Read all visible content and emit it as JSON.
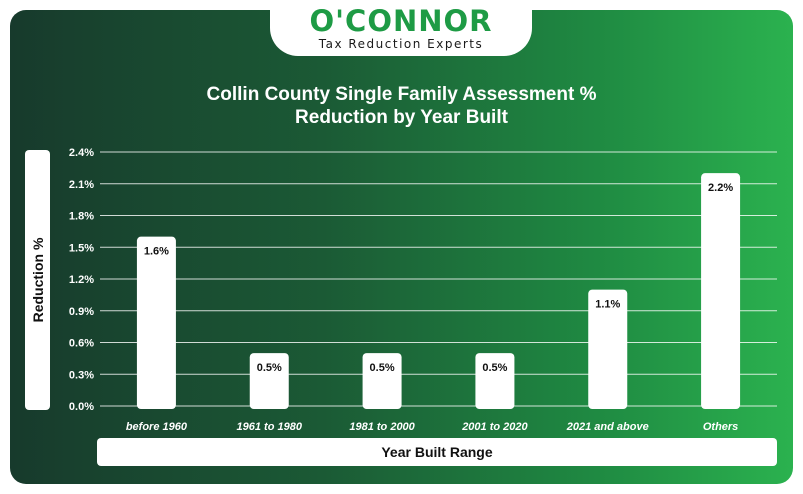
{
  "logo": {
    "name": "O'CONNOR",
    "tagline": "Tax Reduction Experts"
  },
  "colors": {
    "bar": "#ffffff",
    "grid": "#ffffff",
    "logo_green": "#1e9b45",
    "background_start": "#173a2c",
    "background_end": "#2bb24f"
  },
  "chart_data": {
    "type": "bar",
    "title_line1": "Collin County Single Family Assessment %",
    "title_line2": "Reduction by Year Built",
    "xlabel": "Year Built Range",
    "ylabel": "Reduction %",
    "categories": [
      "before 1960",
      "1961 to 1980",
      "1981 to 2000",
      "2001 to 2020",
      "2021 and above",
      "Others"
    ],
    "values": [
      1.6,
      0.5,
      0.5,
      0.5,
      1.1,
      2.2
    ],
    "data_labels": [
      "1.6%",
      "0.5%",
      "0.5%",
      "0.5%",
      "1.1%",
      "2.2%"
    ],
    "yticks": [
      "0.0%",
      "0.3%",
      "0.6%",
      "0.9%",
      "1.2%",
      "1.5%",
      "1.8%",
      "2.1%",
      "2.4%"
    ],
    "ylim": [
      0,
      2.4
    ],
    "grid": true,
    "legend": "none"
  }
}
